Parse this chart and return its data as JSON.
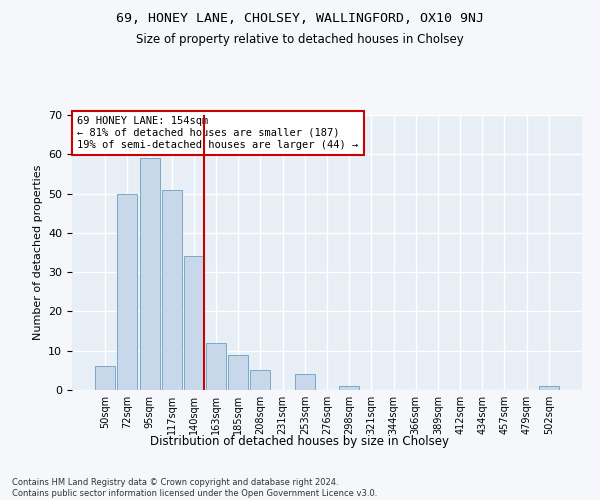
{
  "title1": "69, HONEY LANE, CHOLSEY, WALLINGFORD, OX10 9NJ",
  "title2": "Size of property relative to detached houses in Cholsey",
  "xlabel": "Distribution of detached houses by size in Cholsey",
  "ylabel": "Number of detached properties",
  "bar_labels": [
    "50sqm",
    "72sqm",
    "95sqm",
    "117sqm",
    "140sqm",
    "163sqm",
    "185sqm",
    "208sqm",
    "231sqm",
    "253sqm",
    "276sqm",
    "298sqm",
    "321sqm",
    "344sqm",
    "366sqm",
    "389sqm",
    "412sqm",
    "434sqm",
    "457sqm",
    "479sqm",
    "502sqm"
  ],
  "bar_values": [
    6,
    50,
    59,
    51,
    34,
    12,
    9,
    5,
    0,
    4,
    0,
    1,
    0,
    0,
    0,
    0,
    0,
    0,
    0,
    0,
    1
  ],
  "bar_color": "#c8d8ea",
  "bar_edge_color": "#7aaac8",
  "fig_background_color": "#f5f7fa",
  "ax_background_color": "#e8eef5",
  "grid_color": "#ffffff",
  "vline_color": "#cc0000",
  "annotation_text": "69 HONEY LANE: 154sqm\n← 81% of detached houses are smaller (187)\n19% of semi-detached houses are larger (44) →",
  "annotation_box_color": "#ffffff",
  "annotation_box_edge": "#cc0000",
  "ylim": [
    0,
    70
  ],
  "yticks": [
    0,
    10,
    20,
    30,
    40,
    50,
    60,
    70
  ],
  "footnote": "Contains HM Land Registry data © Crown copyright and database right 2024.\nContains public sector information licensed under the Open Government Licence v3.0."
}
